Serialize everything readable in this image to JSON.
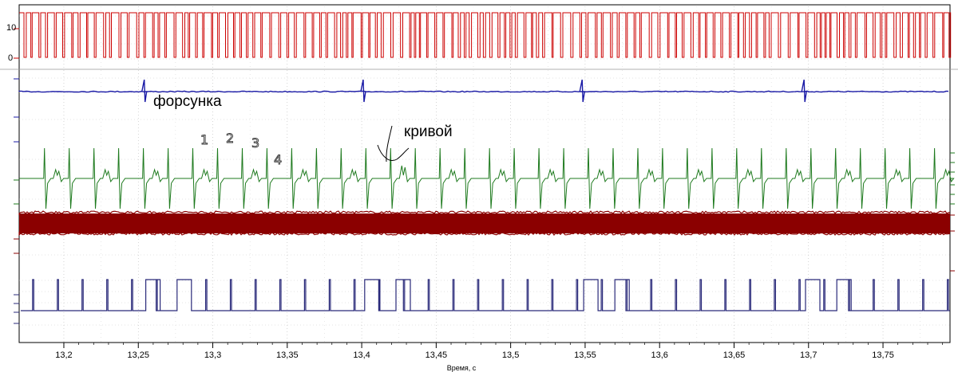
{
  "chart_data": {
    "type": "line",
    "xlabel": "Время, с",
    "xlim": [
      13.17,
      13.795
    ],
    "x_ticks": [
      "13,2",
      "13,25",
      "13,3",
      "13,35",
      "13,4",
      "13,45",
      "13,5",
      "13,55",
      "13,6",
      "13,65",
      "13,7",
      "13,75"
    ],
    "x_tick_values": [
      13.2,
      13.25,
      13.3,
      13.35,
      13.4,
      13.45,
      13.5,
      13.55,
      13.6,
      13.65,
      13.7,
      13.75
    ],
    "grid": true,
    "top_trace_ticks": [
      "10",
      "0"
    ],
    "annotations": {
      "injector": "форсунка",
      "crooked": "кривой",
      "n1": "1",
      "n2": "2",
      "n3": "3",
      "n4": "4"
    },
    "series": [
      {
        "color": "#cc0000",
        "kind": "square-pulse-train",
        "levels": [
          0,
          10
        ]
      },
      {
        "color": "#1a1aa6",
        "kind": "injector-spikes",
        "spike_times": [
          13.254,
          13.401,
          13.548,
          13.697
        ]
      },
      {
        "color": "#1e7a1e",
        "kind": "bipolar-pulses",
        "period": 0.0166,
        "first_pulse": 13.187
      },
      {
        "color": "#8b0000",
        "kind": "dense-noise-band"
      },
      {
        "color": "#2a2a7a",
        "kind": "reference-pulses",
        "period": 0.0166,
        "wide_pulse_starts": [
          13.255,
          13.276,
          13.402,
          13.423,
          13.549,
          13.57,
          13.698,
          13.719
        ]
      }
    ]
  }
}
